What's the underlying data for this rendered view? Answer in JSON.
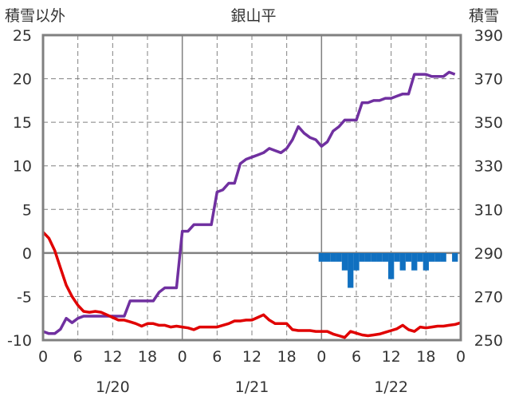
{
  "chart_data": {
    "type": "line",
    "title": "銀山平",
    "left_axis_label": "積雪以外",
    "right_axis_label": "積雪",
    "left_ylim": [
      -10,
      25
    ],
    "left_yticks": [
      25,
      20,
      15,
      10,
      5,
      0,
      -5,
      -10
    ],
    "right_ylim": [
      250,
      390
    ],
    "right_yticks": [
      390,
      370,
      350,
      330,
      310,
      290,
      270,
      250
    ],
    "xlim_hours": [
      0,
      72
    ],
    "x_tick_labels": [
      "0",
      "6",
      "12",
      "18",
      "0",
      "6",
      "12",
      "18",
      "0",
      "6",
      "12",
      "18",
      "0"
    ],
    "date_labels": [
      "1/20",
      "1/21",
      "1/22"
    ],
    "grid": true,
    "colors": {
      "snow_depth": "#7030a0",
      "temperature": "#e00000",
      "precipitation": "#1070c0",
      "axis": "#808080",
      "grid": "#808080"
    },
    "series": [
      {
        "axis": "right",
        "points": [
          [
            0,
            254
          ],
          [
            1,
            253
          ],
          [
            2,
            253
          ],
          [
            3,
            255
          ],
          [
            4,
            260
          ],
          [
            5,
            258
          ],
          [
            6,
            260
          ],
          [
            7,
            261
          ],
          [
            8,
            261
          ],
          [
            9,
            261
          ],
          [
            10,
            261
          ],
          [
            11,
            261
          ],
          [
            12,
            261
          ],
          [
            13,
            261
          ],
          [
            14,
            261
          ],
          [
            15,
            268
          ],
          [
            16,
            268
          ],
          [
            17,
            268
          ],
          [
            18,
            268
          ],
          [
            19,
            268
          ],
          [
            20,
            272
          ],
          [
            21,
            274
          ],
          [
            22,
            274
          ],
          [
            23,
            274
          ],
          [
            24,
            300
          ],
          [
            25,
            300
          ],
          [
            26,
            303
          ],
          [
            27,
            303
          ],
          [
            28,
            303
          ],
          [
            29,
            303
          ],
          [
            30,
            318
          ],
          [
            31,
            319
          ],
          [
            32,
            322
          ],
          [
            33,
            322
          ],
          [
            34,
            331
          ],
          [
            35,
            333
          ],
          [
            36,
            334
          ],
          [
            37,
            335
          ],
          [
            38,
            336
          ],
          [
            39,
            338
          ],
          [
            40,
            337
          ],
          [
            41,
            336
          ],
          [
            42,
            338
          ],
          [
            43,
            342
          ],
          [
            44,
            348
          ],
          [
            45,
            345
          ],
          [
            46,
            343
          ],
          [
            47,
            342
          ],
          [
            48,
            339
          ],
          [
            49,
            341
          ],
          [
            50,
            346
          ],
          [
            51,
            348
          ],
          [
            52,
            351
          ],
          [
            53,
            351
          ],
          [
            54,
            351
          ],
          [
            55,
            359
          ],
          [
            56,
            359
          ],
          [
            57,
            360
          ],
          [
            58,
            360
          ],
          [
            59,
            361
          ],
          [
            60,
            361
          ],
          [
            61,
            362
          ],
          [
            62,
            363
          ],
          [
            63,
            363
          ],
          [
            64,
            372
          ],
          [
            65,
            372
          ],
          [
            66,
            372
          ],
          [
            67,
            371
          ],
          [
            68,
            371
          ],
          [
            69,
            371
          ],
          [
            70,
            373
          ],
          [
            71,
            372
          ]
        ]
      },
      {
        "axis": "left",
        "points": [
          [
            0,
            2.4
          ],
          [
            1,
            1.7
          ],
          [
            2,
            0.3
          ],
          [
            3,
            -1.7
          ],
          [
            4,
            -3.7
          ],
          [
            5,
            -5.0
          ],
          [
            6,
            -6.0
          ],
          [
            7,
            -6.7
          ],
          [
            8,
            -6.8
          ],
          [
            9,
            -6.7
          ],
          [
            10,
            -6.8
          ],
          [
            11,
            -7.1
          ],
          [
            12,
            -7.4
          ],
          [
            13,
            -7.7
          ],
          [
            14,
            -7.7
          ],
          [
            15,
            -7.9
          ],
          [
            16,
            -8.1
          ],
          [
            17,
            -8.4
          ],
          [
            18,
            -8.1
          ],
          [
            19,
            -8.1
          ],
          [
            20,
            -8.3
          ],
          [
            21,
            -8.3
          ],
          [
            22,
            -8.5
          ],
          [
            23,
            -8.4
          ],
          [
            24,
            -8.5
          ],
          [
            25,
            -8.6
          ],
          [
            26,
            -8.8
          ],
          [
            27,
            -8.5
          ],
          [
            28,
            -8.5
          ],
          [
            29,
            -8.5
          ],
          [
            30,
            -8.5
          ],
          [
            31,
            -8.3
          ],
          [
            32,
            -8.1
          ],
          [
            33,
            -7.8
          ],
          [
            34,
            -7.8
          ],
          [
            35,
            -7.7
          ],
          [
            36,
            -7.7
          ],
          [
            37,
            -7.4
          ],
          [
            38,
            -7.1
          ],
          [
            39,
            -7.7
          ],
          [
            40,
            -8.1
          ],
          [
            41,
            -8.1
          ],
          [
            42,
            -8.1
          ],
          [
            43,
            -8.8
          ],
          [
            44,
            -8.9
          ],
          [
            45,
            -8.9
          ],
          [
            46,
            -8.9
          ],
          [
            47,
            -9.0
          ],
          [
            48,
            -9.0
          ],
          [
            49,
            -9.0
          ],
          [
            50,
            -9.3
          ],
          [
            51,
            -9.5
          ],
          [
            52,
            -9.7
          ],
          [
            53,
            -9.0
          ],
          [
            54,
            -9.2
          ],
          [
            55,
            -9.4
          ],
          [
            56,
            -9.5
          ],
          [
            57,
            -9.4
          ],
          [
            58,
            -9.3
          ],
          [
            59,
            -9.1
          ],
          [
            60,
            -8.9
          ],
          [
            61,
            -8.7
          ],
          [
            62,
            -8.3
          ],
          [
            63,
            -8.8
          ],
          [
            64,
            -9.0
          ],
          [
            65,
            -8.5
          ],
          [
            66,
            -8.6
          ],
          [
            67,
            -8.5
          ],
          [
            68,
            -8.4
          ],
          [
            69,
            -8.4
          ],
          [
            70,
            -8.3
          ],
          [
            71,
            -8.2
          ],
          [
            72,
            -8.0
          ]
        ]
      },
      {
        "axis": "left",
        "bars_from_zero": true,
        "points": [
          [
            48,
            -1
          ],
          [
            49,
            -1
          ],
          [
            50,
            -1
          ],
          [
            51,
            -1
          ],
          [
            52,
            -2
          ],
          [
            53,
            -4
          ],
          [
            54,
            -2
          ],
          [
            55,
            -1
          ],
          [
            56,
            -1
          ],
          [
            57,
            -1
          ],
          [
            58,
            -1
          ],
          [
            59,
            -1
          ],
          [
            60,
            -3
          ],
          [
            61,
            -1
          ],
          [
            62,
            -2
          ],
          [
            63,
            -1
          ],
          [
            64,
            -2
          ],
          [
            65,
            -1
          ],
          [
            66,
            -2
          ],
          [
            67,
            -1
          ],
          [
            68,
            -1
          ],
          [
            69,
            -1
          ],
          [
            71,
            -1
          ]
        ]
      }
    ]
  }
}
